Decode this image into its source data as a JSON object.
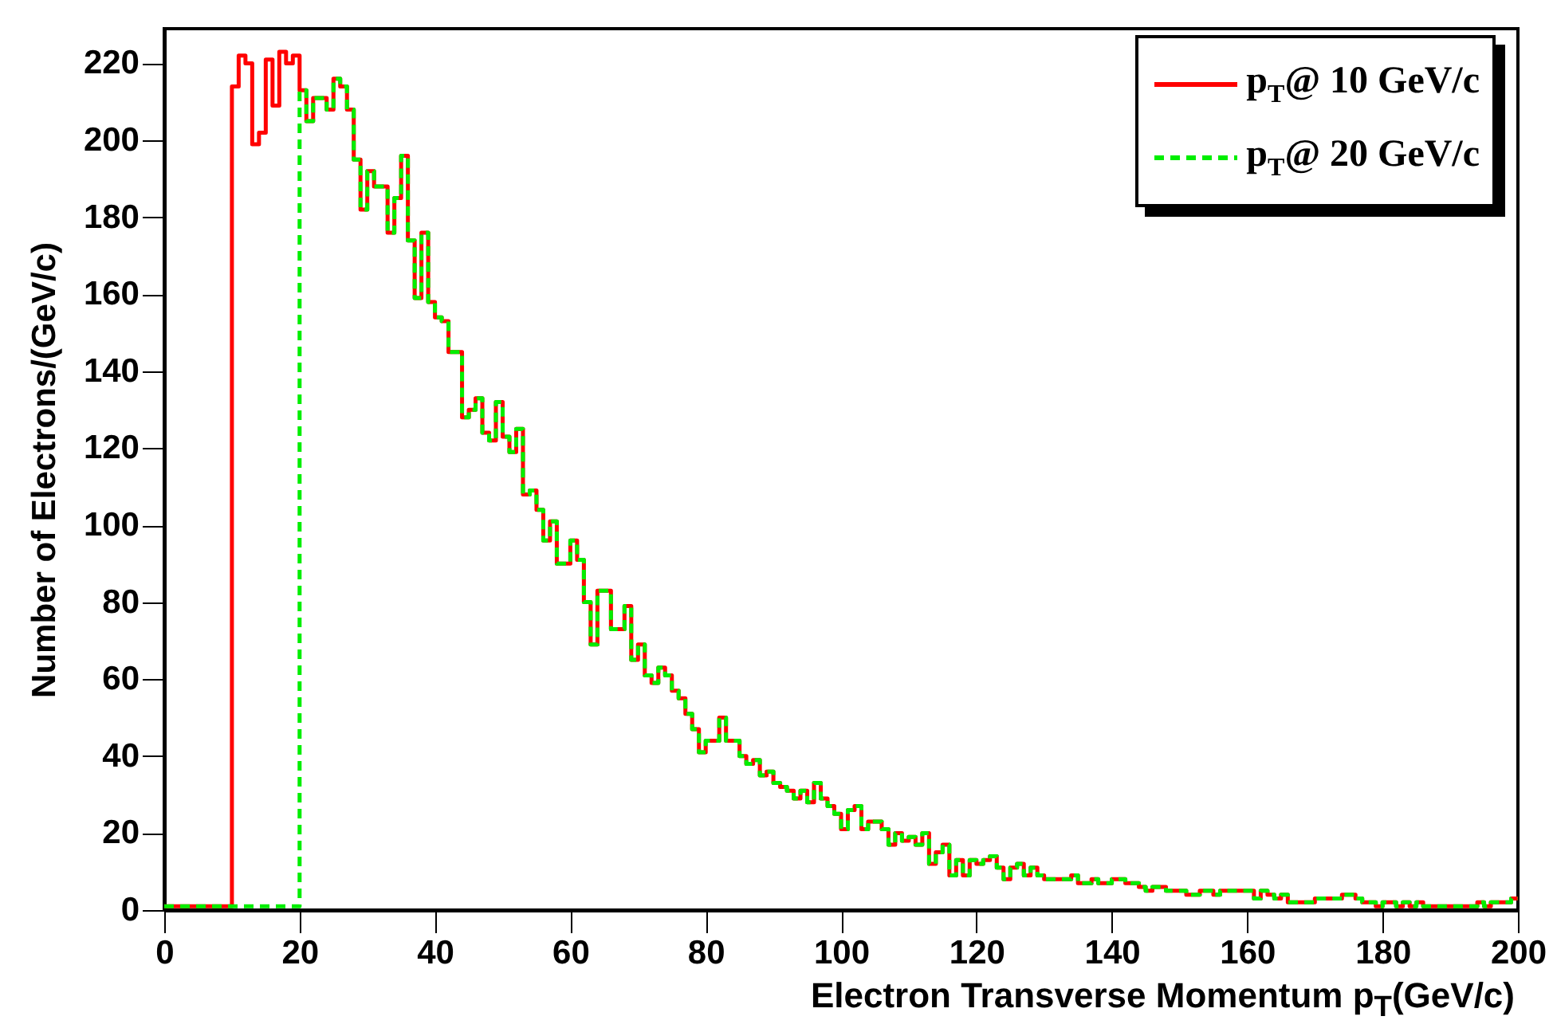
{
  "chart_data": {
    "type": "histogram",
    "xlabel": "Electron Transverse Momentum p$_{T}$(GeV/c)",
    "ylabel": "Number of Electrons/(GeV/c)",
    "xlim": [
      0,
      200
    ],
    "xticks": [
      0,
      20,
      40,
      60,
      80,
      100,
      120,
      140,
      160,
      180,
      200
    ],
    "ylim": [
      0,
      229
    ],
    "yticks": [
      0,
      20,
      40,
      60,
      80,
      100,
      120,
      140,
      160,
      180,
      200,
      220
    ],
    "legend": "top right",
    "bins": [
      0,
      1,
      2,
      3,
      4,
      5,
      6,
      7,
      8,
      9,
      10,
      11,
      12,
      13,
      14,
      15,
      16,
      17,
      18,
      19,
      20,
      21,
      22,
      23,
      24,
      25,
      26,
      27,
      28,
      29,
      30,
      31,
      32,
      33,
      34,
      35,
      36,
      37,
      38,
      39,
      40,
      41,
      42,
      43,
      44,
      45,
      46,
      47,
      48,
      49,
      50,
      51,
      52,
      53,
      54,
      55,
      56,
      57,
      58,
      59,
      60,
      61,
      62,
      63,
      64,
      65,
      66,
      67,
      68,
      69,
      70,
      71,
      72,
      73,
      74,
      75,
      76,
      77,
      78,
      79,
      80,
      81,
      82,
      83,
      84,
      85,
      86,
      87,
      88,
      89,
      90,
      91,
      92,
      93,
      94,
      95,
      96,
      97,
      98,
      99,
      100,
      101,
      102,
      103,
      104,
      105,
      106,
      107,
      108,
      109,
      110,
      111,
      112,
      113,
      114,
      115,
      116,
      117,
      118,
      119,
      120,
      121,
      122,
      123,
      124,
      125,
      126,
      127,
      128,
      129,
      130,
      131,
      132,
      133,
      134,
      135,
      136,
      137,
      138,
      139,
      140,
      141,
      142,
      143,
      144,
      145,
      146,
      147,
      148,
      149,
      150,
      151,
      152,
      153,
      154,
      155,
      156,
      157,
      158,
      159,
      160,
      161,
      162,
      163,
      164,
      165,
      166,
      167,
      168,
      169,
      170,
      171,
      172,
      173,
      174,
      175,
      176,
      177,
      178,
      179,
      180,
      181,
      182,
      183,
      184,
      185,
      186,
      187,
      188,
      189,
      190,
      191,
      192,
      193,
      194,
      195,
      196,
      197,
      198,
      199,
      200
    ],
    "series": [
      {
        "name": "p$_{T}$@ 10 GeV/c",
        "color": "#ff0000",
        "line_style": "solid",
        "values": [
          1,
          1,
          1,
          1,
          1,
          1,
          1,
          1,
          1,
          1,
          214,
          222,
          220,
          199,
          202,
          221,
          209,
          223,
          220,
          222,
          213,
          205,
          211,
          211,
          208,
          216,
          214,
          208,
          195,
          182,
          192,
          188,
          188,
          176,
          185,
          196,
          174,
          159,
          176,
          158,
          154,
          153,
          145,
          145,
          128,
          130,
          133,
          124,
          122,
          132,
          123,
          119,
          125,
          108,
          109,
          104,
          96,
          101,
          90,
          90,
          96,
          91,
          80,
          69,
          83,
          83,
          73,
          73,
          79,
          65,
          69,
          61,
          59,
          63,
          61,
          57,
          55,
          51,
          47,
          41,
          44,
          44,
          50,
          44,
          44,
          40,
          38,
          39,
          35,
          36,
          33,
          32,
          31,
          29,
          31,
          28,
          33,
          29,
          27,
          25,
          21,
          26,
          27,
          21,
          23,
          23,
          21,
          17,
          20,
          18,
          19,
          17,
          20,
          12,
          15,
          17,
          9,
          13,
          9,
          13,
          12,
          13,
          14,
          11,
          8,
          11,
          12,
          9,
          11,
          9,
          8,
          8,
          8,
          8,
          9,
          7,
          7,
          8,
          7,
          7,
          8,
          8,
          7,
          7,
          6,
          5,
          6,
          6,
          5,
          5,
          5,
          4,
          4,
          5,
          5,
          4,
          5,
          5,
          5,
          5,
          5,
          3,
          5,
          4,
          3,
          4,
          2,
          2,
          2,
          2,
          3,
          3,
          3,
          3,
          4,
          4,
          3,
          2,
          2,
          1,
          2,
          2,
          1,
          2,
          1,
          2,
          1,
          1,
          1,
          1,
          1,
          1,
          1,
          1,
          2,
          1,
          2,
          2,
          2,
          3
        ]
      },
      {
        "name": "p$_{T}$@ 20 GeV/c",
        "color": "#00ee00",
        "line_style": "dashed",
        "values": [
          1,
          1,
          1,
          1,
          1,
          1,
          1,
          1,
          1,
          1,
          1,
          1,
          1,
          1,
          1,
          1,
          1,
          1,
          1,
          1,
          213,
          205,
          211,
          211,
          208,
          216,
          214,
          208,
          195,
          182,
          192,
          188,
          188,
          176,
          185,
          196,
          174,
          159,
          176,
          158,
          154,
          153,
          145,
          145,
          128,
          130,
          133,
          124,
          122,
          132,
          123,
          119,
          125,
          108,
          109,
          104,
          96,
          101,
          90,
          90,
          96,
          91,
          80,
          69,
          83,
          83,
          73,
          73,
          79,
          65,
          69,
          61,
          59,
          63,
          61,
          57,
          55,
          51,
          47,
          41,
          44,
          44,
          50,
          44,
          44,
          40,
          38,
          39,
          35,
          36,
          33,
          32,
          31,
          29,
          31,
          28,
          33,
          29,
          27,
          25,
          21,
          26,
          27,
          21,
          23,
          23,
          21,
          17,
          20,
          18,
          19,
          17,
          20,
          12,
          15,
          17,
          9,
          13,
          9,
          13,
          12,
          13,
          14,
          11,
          8,
          11,
          12,
          9,
          11,
          9,
          8,
          8,
          8,
          8,
          9,
          7,
          7,
          8,
          7,
          7,
          8,
          8,
          7,
          7,
          6,
          5,
          6,
          6,
          5,
          5,
          5,
          4,
          4,
          5,
          5,
          4,
          5,
          5,
          5,
          5,
          5,
          3,
          5,
          4,
          3,
          4,
          2,
          2,
          2,
          2,
          3,
          3,
          3,
          3,
          4,
          4,
          3,
          2,
          2,
          1,
          2,
          2,
          1,
          2,
          1,
          2,
          1,
          1,
          1,
          1,
          1,
          1,
          1,
          1,
          2,
          1,
          2,
          2,
          2,
          3
        ]
      }
    ]
  }
}
